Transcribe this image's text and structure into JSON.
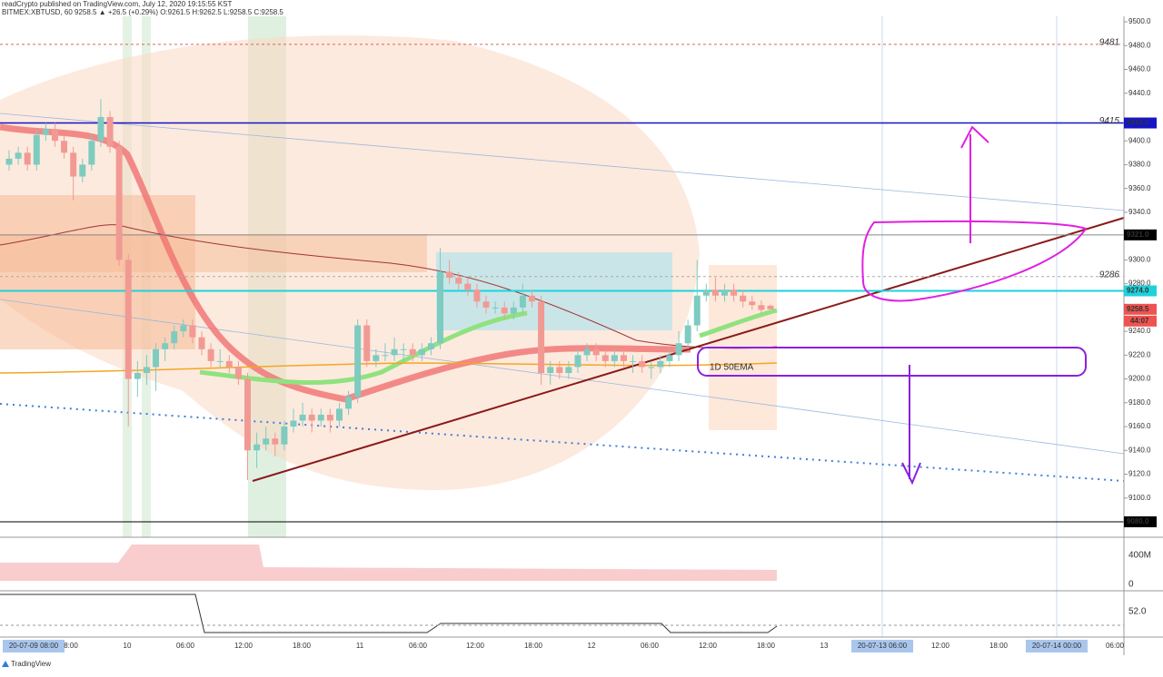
{
  "header": {
    "line1": "readCrypto published on TradingView.com, July 12, 2020 19:15:55 KST",
    "line2": "BITMEX:XBTUSD, 60 9258.5 ▲ +26.5 (+0.29%) O:9261.5 H:9262.5 L:9258.5 C:9258.5"
  },
  "chart": {
    "type": "candlestick",
    "ylim": [
      9080,
      9500
    ],
    "yticks": [
      {
        "value": 9500,
        "label": "9500.0"
      },
      {
        "value": 9480,
        "label": "9480.0"
      },
      {
        "value": 9460,
        "label": "9460.0"
      },
      {
        "value": 9440,
        "label": "9440.0"
      },
      {
        "value": 9400,
        "label": "9400.0"
      },
      {
        "value": 9380,
        "label": "9380.0"
      },
      {
        "value": 9360,
        "label": "9360.0"
      },
      {
        "value": 9340,
        "label": "9340.0"
      },
      {
        "value": 9300,
        "label": "9300.0"
      },
      {
        "value": 9280,
        "label": "9280.0"
      },
      {
        "value": 9240,
        "label": "9240.0"
      },
      {
        "value": 9220,
        "label": "9220.0"
      },
      {
        "value": 9200,
        "label": "9200.0"
      },
      {
        "value": 9180,
        "label": "9180.0"
      },
      {
        "value": 9160,
        "label": "9160.0"
      },
      {
        "value": 9140,
        "label": "9140.0"
      },
      {
        "value": 9120,
        "label": "9120.0"
      },
      {
        "value": 9100,
        "label": "9100.0"
      }
    ],
    "price_tags": [
      {
        "value": 9415,
        "label": "9415.0",
        "color": "#1414c8"
      },
      {
        "value": 9321,
        "label": "9321.0",
        "color": "#000000"
      },
      {
        "value": 9274,
        "label": "9274.0",
        "color": "#1ed2dc"
      },
      {
        "value": 9258.5,
        "label": "9258.5",
        "color": "#ef5350"
      },
      {
        "value": 9080,
        "label": "9080.0",
        "color": "#000000"
      }
    ],
    "countdown": "44:07",
    "level_labels": [
      {
        "value": 9481,
        "label": "9481"
      },
      {
        "value": 9415,
        "label": "9415"
      },
      {
        "value": 9286,
        "label": "9286"
      }
    ],
    "annotation": "1D 50EMA",
    "candles": [
      [
        9380,
        9392,
        9375,
        9385
      ],
      [
        9385,
        9395,
        9380,
        9390
      ],
      [
        9390,
        9395,
        9375,
        9380
      ],
      [
        9380,
        9410,
        9375,
        9405
      ],
      [
        9405,
        9415,
        9400,
        9410
      ],
      [
        9410,
        9415,
        9395,
        9400
      ],
      [
        9400,
        9405,
        9385,
        9390
      ],
      [
        9390,
        9395,
        9350,
        9370
      ],
      [
        9370,
        9385,
        9365,
        9380
      ],
      [
        9380,
        9405,
        9375,
        9400
      ],
      [
        9400,
        9435,
        9395,
        9420
      ],
      [
        9420,
        9425,
        9390,
        9395
      ],
      [
        9395,
        9400,
        9295,
        9300
      ],
      [
        9300,
        9305,
        9160,
        9200
      ],
      [
        9200,
        9215,
        9185,
        9205
      ],
      [
        9205,
        9220,
        9195,
        9210
      ],
      [
        9210,
        9230,
        9190,
        9225
      ],
      [
        9225,
        9235,
        9215,
        9230
      ],
      [
        9230,
        9245,
        9225,
        9240
      ],
      [
        9240,
        9250,
        9235,
        9245
      ],
      [
        9245,
        9250,
        9230,
        9235
      ],
      [
        9235,
        9240,
        9220,
        9225
      ],
      [
        9225,
        9230,
        9210,
        9215
      ],
      [
        9215,
        9225,
        9210,
        9215
      ],
      [
        9215,
        9220,
        9205,
        9210
      ],
      [
        9210,
        9215,
        9195,
        9200
      ],
      [
        9200,
        9205,
        9115,
        9140
      ],
      [
        9140,
        9155,
        9125,
        9145
      ],
      [
        9145,
        9160,
        9140,
        9150
      ],
      [
        9150,
        9155,
        9135,
        9145
      ],
      [
        9145,
        9165,
        9140,
        9160
      ],
      [
        9160,
        9175,
        9155,
        9165
      ],
      [
        9165,
        9180,
        9160,
        9170
      ],
      [
        9170,
        9175,
        9155,
        9165
      ],
      [
        9165,
        9175,
        9160,
        9170
      ],
      [
        9170,
        9175,
        9155,
        9165
      ],
      [
        9165,
        9180,
        9160,
        9175
      ],
      [
        9175,
        9190,
        9170,
        9185
      ],
      [
        9185,
        9250,
        9180,
        9245
      ],
      [
        9245,
        9250,
        9210,
        9215
      ],
      [
        9215,
        9225,
        9210,
        9220
      ],
      [
        9220,
        9230,
        9215,
        9220
      ],
      [
        9220,
        9235,
        9215,
        9225
      ],
      [
        9225,
        9230,
        9215,
        9225
      ],
      [
        9225,
        9230,
        9215,
        9220
      ],
      [
        9220,
        9230,
        9215,
        9225
      ],
      [
        9225,
        9235,
        9220,
        9230
      ],
      [
        9230,
        9310,
        9225,
        9290
      ],
      [
        9290,
        9300,
        9280,
        9285
      ],
      [
        9285,
        9290,
        9275,
        9280
      ],
      [
        9280,
        9285,
        9270,
        9275
      ],
      [
        9275,
        9280,
        9260,
        9265
      ],
      [
        9265,
        9270,
        9255,
        9260
      ],
      [
        9260,
        9265,
        9255,
        9260
      ],
      [
        9260,
        9265,
        9250,
        9255
      ],
      [
        9255,
        9265,
        9250,
        9260
      ],
      [
        9260,
        9280,
        9255,
        9270
      ],
      [
        9270,
        9275,
        9260,
        9265
      ],
      [
        9265,
        9270,
        9195,
        9205
      ],
      [
        9205,
        9215,
        9195,
        9210
      ],
      [
        9210,
        9215,
        9200,
        9205
      ],
      [
        9205,
        9215,
        9200,
        9210
      ],
      [
        9210,
        9225,
        9205,
        9220
      ],
      [
        9220,
        9230,
        9215,
        9225
      ],
      [
        9225,
        9230,
        9215,
        9220
      ],
      [
        9220,
        9225,
        9210,
        9215
      ],
      [
        9215,
        9225,
        9210,
        9220
      ],
      [
        9220,
        9225,
        9210,
        9215
      ],
      [
        9215,
        9220,
        9205,
        9215
      ],
      [
        9215,
        9220,
        9205,
        9210
      ],
      [
        9210,
        9215,
        9200,
        9210
      ],
      [
        9210,
        9220,
        9205,
        9215
      ],
      [
        9215,
        9225,
        9210,
        9220
      ],
      [
        9220,
        9240,
        9215,
        9230
      ],
      [
        9230,
        9250,
        9225,
        9245
      ],
      [
        9245,
        9300,
        9240,
        9270
      ],
      [
        9270,
        9280,
        9265,
        9275
      ],
      [
        9275,
        9285,
        9265,
        9270
      ],
      [
        9270,
        9280,
        9265,
        9275
      ],
      [
        9275,
        9280,
        9265,
        9270
      ],
      [
        9270,
        9275,
        9260,
        9265
      ],
      [
        9265,
        9270,
        9258,
        9262
      ],
      [
        9262,
        9266,
        9255,
        9258
      ],
      [
        9261.5,
        9262.5,
        9258.5,
        9258.5
      ]
    ],
    "up_color": "#7ecbc0",
    "down_color": "#f19a94",
    "time_labels": [
      "20-07-09 08:00",
      "8:00",
      "10",
      "06:00",
      "12:00",
      "18:00",
      "11",
      "06:00",
      "12:00",
      "18:00",
      "12",
      "06:00",
      "12:00",
      "18:00",
      "13",
      "20-07-13 06:00",
      "12:00",
      "18:00",
      "20-07-14 00:00",
      "06:00"
    ],
    "volume_ticks": [
      "400M",
      "0"
    ],
    "oscillator_tick": "52.0"
  },
  "footer": "TradingView"
}
